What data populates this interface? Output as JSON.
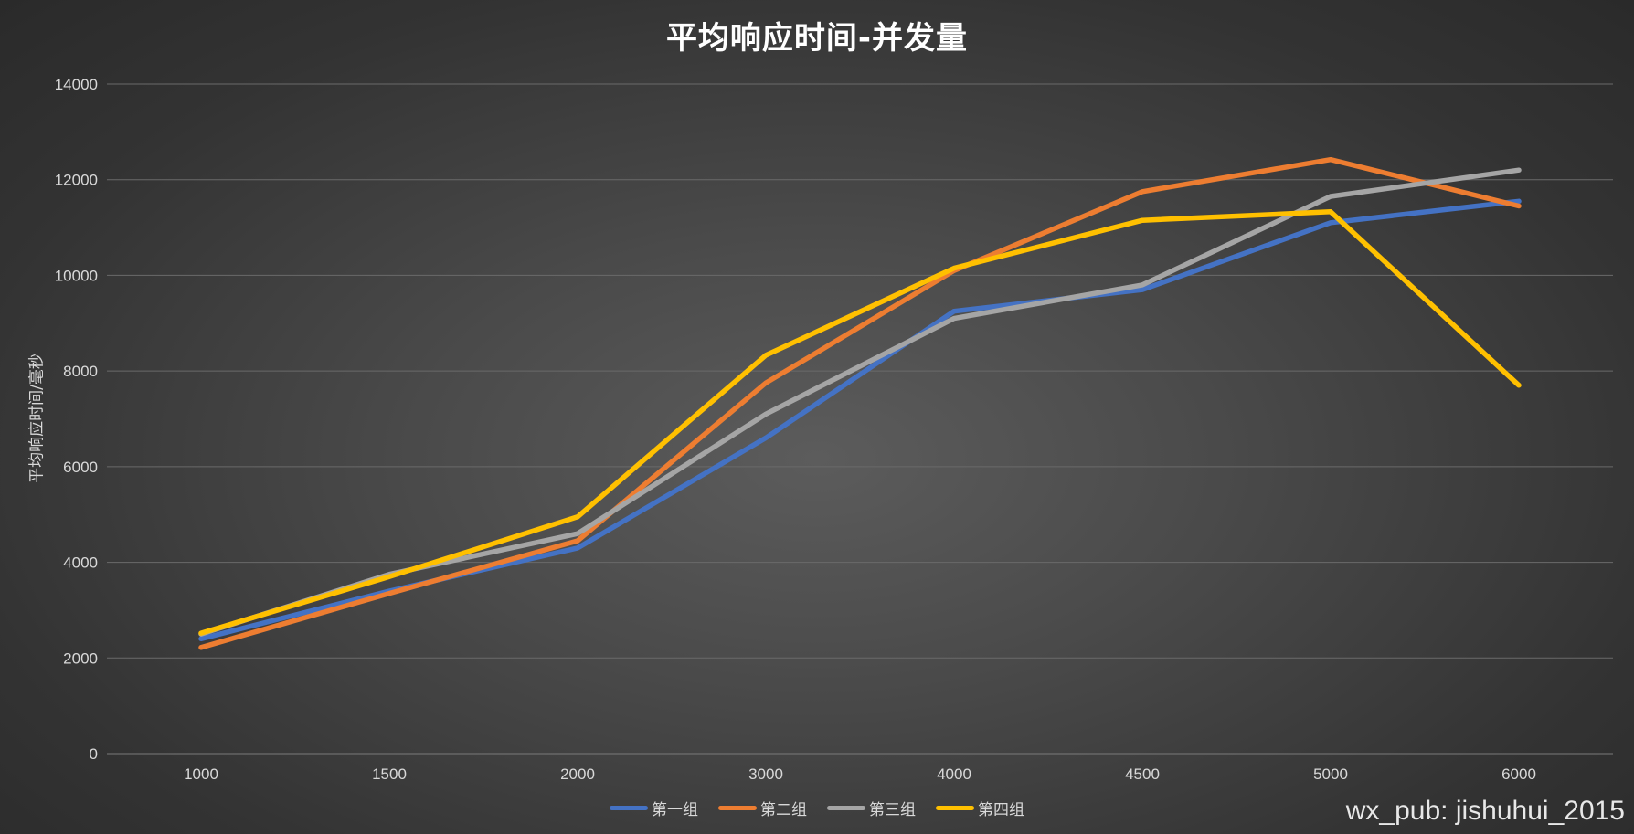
{
  "watermark": "wx_pub: jishuhui_2015",
  "chart_data": {
    "type": "line",
    "title": "平均响应时间-并发量",
    "xlabel": "",
    "ylabel": "平均响应时间/毫秒",
    "categories": [
      "1000",
      "1500",
      "2000",
      "3000",
      "4000",
      "4500",
      "5000",
      "6000"
    ],
    "ylim": [
      0,
      14000
    ],
    "yticks": [
      0,
      2000,
      4000,
      6000,
      8000,
      10000,
      12000,
      14000
    ],
    "grid": true,
    "legend_position": "bottom",
    "series": [
      {
        "name": "第一组",
        "color": "#4472C4",
        "values": [
          2400,
          3400,
          4300,
          6600,
          9250,
          9700,
          11100,
          11550
        ]
      },
      {
        "name": "第二组",
        "color": "#ED7D31",
        "values": [
          2220,
          3350,
          4450,
          7750,
          10100,
          11750,
          12420,
          11450
        ]
      },
      {
        "name": "第三组",
        "color": "#A5A5A5",
        "values": [
          2500,
          3750,
          4600,
          7100,
          9100,
          9800,
          11650,
          12200
        ]
      },
      {
        "name": "第四组",
        "color": "#FFC000",
        "values": [
          2520,
          3700,
          4950,
          8330,
          10150,
          11150,
          11330,
          7700
        ]
      }
    ]
  }
}
